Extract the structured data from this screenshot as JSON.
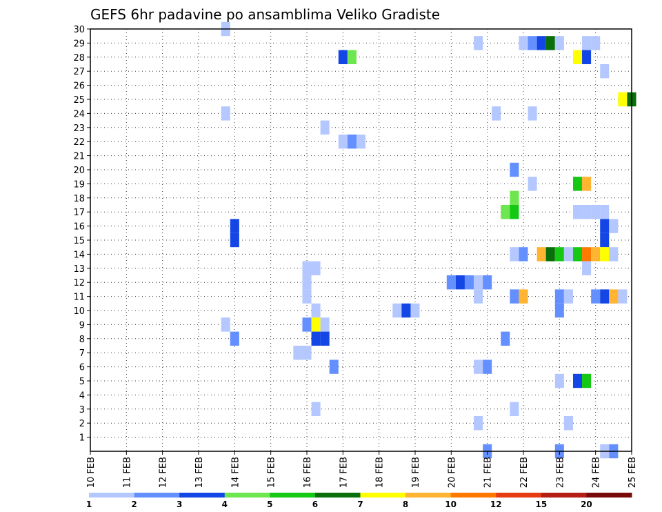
{
  "chart_data": {
    "type": "heatmap",
    "title": "GEFS 6hr padavine po ansamblima Veliko Gradiste",
    "x_categories": [
      "10 FEB",
      "11 FEB",
      "12 FEB",
      "13 FEB",
      "14 FEB",
      "15 FEB",
      "16 FEB",
      "17 FEB",
      "18 FEB",
      "19 FEB",
      "20 FEB",
      "21 FEB",
      "22 FEB",
      "23 FEB",
      "24 FEB",
      "25 FEB"
    ],
    "x_range": [
      0,
      15
    ],
    "y_ticks": [
      1,
      2,
      3,
      4,
      5,
      6,
      7,
      8,
      9,
      10,
      11,
      12,
      13,
      14,
      15,
      16,
      17,
      18,
      19,
      20,
      21,
      22,
      23,
      24,
      25,
      26,
      27,
      28,
      29,
      30
    ],
    "y_range": [
      0,
      30
    ],
    "grid": true,
    "legend": {
      "placement": "bottom",
      "labels": [
        "1",
        "2",
        "3",
        "4",
        "5",
        "6",
        "7",
        "8",
        "10",
        "12",
        "15",
        "20"
      ],
      "colors": [
        "#b4c8ff",
        "#6490ff",
        "#1446e6",
        "#6ee650",
        "#14c814",
        "#0a6e0a",
        "#ffff00",
        "#ffb432",
        "#ff7800",
        "#e63c14",
        "#b41e14",
        "#780a0a"
      ]
    },
    "cells": [
      [
        3.75,
        30,
        0
      ],
      [
        10.75,
        29,
        0
      ],
      [
        12.0,
        29,
        0
      ],
      [
        12.25,
        29,
        1
      ],
      [
        12.5,
        29,
        2
      ],
      [
        12.75,
        29,
        5
      ],
      [
        13.0,
        29,
        0
      ],
      [
        13.75,
        29,
        0
      ],
      [
        14.0,
        29,
        0
      ],
      [
        7.0,
        28,
        2
      ],
      [
        7.25,
        28,
        3
      ],
      [
        13.5,
        28,
        6
      ],
      [
        13.75,
        28,
        2
      ],
      [
        14.25,
        27,
        0
      ],
      [
        14.75,
        25,
        6
      ],
      [
        15.0,
        25,
        5
      ],
      [
        3.75,
        24,
        0
      ],
      [
        11.25,
        24,
        0
      ],
      [
        12.25,
        24,
        0
      ],
      [
        6.5,
        23,
        0
      ],
      [
        7.0,
        22,
        0
      ],
      [
        7.25,
        22,
        1
      ],
      [
        7.5,
        22,
        0
      ],
      [
        11.75,
        20,
        1
      ],
      [
        12.25,
        19,
        0
      ],
      [
        13.5,
        19,
        4
      ],
      [
        13.75,
        19,
        7
      ],
      [
        11.75,
        18,
        3
      ],
      [
        11.5,
        17,
        3
      ],
      [
        11.75,
        17,
        4
      ],
      [
        13.5,
        17,
        0
      ],
      [
        13.75,
        17,
        0
      ],
      [
        14.0,
        17,
        0
      ],
      [
        14.25,
        17,
        0
      ],
      [
        4.0,
        16,
        2
      ],
      [
        14.25,
        16,
        2
      ],
      [
        14.5,
        16,
        0
      ],
      [
        4.0,
        15,
        2
      ],
      [
        14.25,
        15,
        2
      ],
      [
        11.75,
        14,
        0
      ],
      [
        12.0,
        14,
        1
      ],
      [
        12.5,
        14,
        7
      ],
      [
        12.75,
        14,
        5
      ],
      [
        13.0,
        14,
        4
      ],
      [
        13.25,
        14,
        0
      ],
      [
        13.5,
        14,
        4
      ],
      [
        13.75,
        14,
        8
      ],
      [
        14.0,
        14,
        7
      ],
      [
        14.25,
        14,
        6
      ],
      [
        14.5,
        14,
        0
      ],
      [
        6.0,
        13,
        0
      ],
      [
        6.25,
        13,
        0
      ],
      [
        13.75,
        13,
        0
      ],
      [
        6.0,
        12,
        0
      ],
      [
        10.0,
        12,
        1
      ],
      [
        10.25,
        12,
        2
      ],
      [
        10.5,
        12,
        1
      ],
      [
        10.75,
        12,
        0
      ],
      [
        11.0,
        12,
        1
      ],
      [
        6.0,
        11,
        0
      ],
      [
        10.75,
        11,
        0
      ],
      [
        11.75,
        11,
        1
      ],
      [
        12.0,
        11,
        7
      ],
      [
        13.0,
        11,
        1
      ],
      [
        13.25,
        11,
        0
      ],
      [
        14.0,
        11,
        1
      ],
      [
        14.25,
        11,
        2
      ],
      [
        14.5,
        11,
        7
      ],
      [
        14.75,
        11,
        0
      ],
      [
        6.25,
        10,
        0
      ],
      [
        8.5,
        10,
        0
      ],
      [
        8.75,
        10,
        2
      ],
      [
        9.0,
        10,
        0
      ],
      [
        13.0,
        10,
        1
      ],
      [
        3.75,
        9,
        0
      ],
      [
        6.0,
        9,
        1
      ],
      [
        6.25,
        9,
        6
      ],
      [
        6.5,
        9,
        0
      ],
      [
        4.0,
        8,
        1
      ],
      [
        6.25,
        8,
        2
      ],
      [
        6.5,
        8,
        2
      ],
      [
        11.5,
        8,
        1
      ],
      [
        5.75,
        7,
        0
      ],
      [
        6.0,
        7,
        0
      ],
      [
        6.75,
        6,
        1
      ],
      [
        10.75,
        6,
        0
      ],
      [
        11.0,
        6,
        1
      ],
      [
        13.0,
        5,
        0
      ],
      [
        13.5,
        5,
        2
      ],
      [
        13.75,
        5,
        4
      ],
      [
        6.25,
        3,
        0
      ],
      [
        11.75,
        3,
        0
      ],
      [
        10.75,
        2,
        0
      ],
      [
        13.25,
        2,
        0
      ],
      [
        11.0,
        0,
        1
      ],
      [
        13.0,
        0,
        1
      ],
      [
        14.25,
        0,
        0
      ],
      [
        14.5,
        0,
        1
      ]
    ]
  }
}
